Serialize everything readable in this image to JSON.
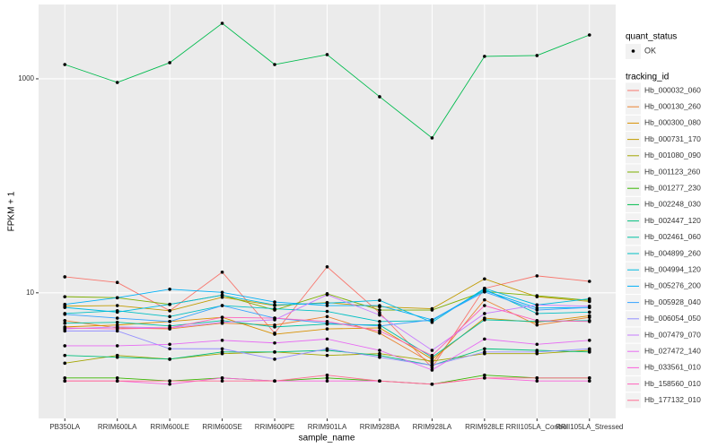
{
  "chart_data": {
    "type": "line",
    "x_label": "sample_name",
    "y_label": "FPKM + 1",
    "log_y": true,
    "grid": true,
    "categories": [
      "PB350LA",
      "RRIM600LA",
      "RRIM600LE",
      "RRIM600SE",
      "RRIM600PE",
      "RRIM901LA",
      "RRIM928BA",
      "RRIM928LA",
      "RRIM928LE",
      "RRII105LA_Control",
      "RRII105LA_Stressed"
    ],
    "ylim": [
      0.67,
      4950
    ],
    "yticks": [
      10,
      1000
    ],
    "point_legend_title": "quant_status",
    "point_legend_entries": [
      "OK"
    ],
    "point_color": "#000000",
    "legend_title": "tracking_id",
    "series": [
      {
        "name": "Hb_000032_060",
        "color": "#F8766D",
        "values": [
          14.1,
          12.5,
          6.8,
          15.6,
          4.2,
          17.5,
          6.5,
          2.0,
          11,
          14.4,
          12.8
        ]
      },
      {
        "name": "Hb_000130_260",
        "color": "#EA8331",
        "values": [
          5.5,
          4.7,
          4.6,
          5.2,
          5.0,
          6.0,
          4.2,
          2.2,
          8.6,
          5.0,
          5.9
        ]
      },
      {
        "name": "Hb_000300_080",
        "color": "#D89000",
        "values": [
          4.8,
          5.0,
          5.4,
          5.9,
          4.1,
          4.6,
          4.7,
          2.4,
          5.8,
          5.3,
          6.1
        ]
      },
      {
        "name": "Hb_000731_170",
        "color": "#C09B00",
        "values": [
          7.5,
          7.6,
          6.8,
          9.1,
          7.6,
          8.1,
          7.4,
          7.1,
          13.5,
          9.2,
          8.3
        ]
      },
      {
        "name": "Hb_001080_090",
        "color": "#A3A500",
        "values": [
          2.2,
          2.6,
          2.4,
          2.7,
          2.8,
          2.6,
          2.7,
          2.3,
          2.7,
          2.7,
          2.9
        ]
      },
      {
        "name": "Hb_001123_260",
        "color": "#7CAE00",
        "values": [
          9.2,
          9.0,
          7.8,
          9.5,
          6.9,
          9.8,
          6.9,
          6.9,
          10.3,
          9.4,
          8.5
        ]
      },
      {
        "name": "Hb_001277_230",
        "color": "#39B600",
        "values": [
          1.6,
          1.6,
          1.5,
          1.6,
          1.5,
          1.6,
          1.5,
          1.4,
          1.7,
          1.6,
          1.6
        ]
      },
      {
        "name": "Hb_002248_030",
        "color": "#00BB4E",
        "values": [
          1360,
          925,
          1415,
          3300,
          1360,
          1683,
          680,
          280,
          1620,
          1650,
          2570
        ]
      },
      {
        "name": "Hb_002447_120",
        "color": "#00BF7D",
        "values": [
          2.6,
          2.5,
          2.4,
          2.8,
          2.8,
          2.9,
          2.6,
          2.1,
          3.0,
          2.9,
          2.8
        ]
      },
      {
        "name": "Hb_002461_060",
        "color": "#00C1A3",
        "values": [
          5.2,
          5.3,
          4.9,
          5.5,
          4.8,
          5.1,
          5.0,
          2.5,
          5.6,
          5.4,
          5.5
        ]
      },
      {
        "name": "Hb_004899_260",
        "color": "#00BFC4",
        "values": [
          6.4,
          6.8,
          6.0,
          7.6,
          7.1,
          6.7,
          5.4,
          5.5,
          10.8,
          6.4,
          6.6
        ]
      },
      {
        "name": "Hb_004994_120",
        "color": "#00BAE0",
        "values": [
          7.3,
          6.6,
          7.8,
          9.5,
          7.7,
          8.0,
          8.5,
          5.3,
          11.0,
          7.7,
          8.8
        ]
      },
      {
        "name": "Hb_005276_200",
        "color": "#00B0F6",
        "values": [
          7.8,
          9.0,
          10.8,
          10.1,
          8.2,
          7.6,
          7.6,
          5.6,
          10.5,
          7.2,
          7.3
        ]
      },
      {
        "name": "Hb_005928_040",
        "color": "#35A2FF",
        "values": [
          6.3,
          5.8,
          5.4,
          7.6,
          5.8,
          5.2,
          4.9,
          5.6,
          10.2,
          6.9,
          7.3
        ]
      },
      {
        "name": "Hb_006054_050",
        "color": "#9590FF",
        "values": [
          4.4,
          4.4,
          3.0,
          3.0,
          2.4,
          3.0,
          2.5,
          2.1,
          2.8,
          2.8,
          3.0
        ]
      },
      {
        "name": "Hb_007479_070",
        "color": "#C77CFF",
        "values": [
          4.6,
          4.8,
          4.7,
          5.3,
          5.6,
          9.6,
          6.2,
          2.9,
          6.4,
          7.7,
          7.5
        ]
      },
      {
        "name": "Hb_027472_140",
        "color": "#E76BF3",
        "values": [
          3.2,
          3.2,
          3.3,
          3.6,
          3.4,
          3.7,
          2.9,
          1.9,
          3.7,
          3.3,
          3.6
        ]
      },
      {
        "name": "Hb_033561_010",
        "color": "#FA62DB",
        "values": [
          1.5,
          1.5,
          1.4,
          1.6,
          1.5,
          1.5,
          1.5,
          1.4,
          1.6,
          1.5,
          1.5
        ]
      },
      {
        "name": "Hb_158560_010",
        "color": "#FF62BC",
        "values": [
          4.7,
          4.6,
          4.7,
          5.9,
          5.8,
          5.4,
          4.4,
          2.6,
          7.6,
          5.5,
          5.4
        ]
      },
      {
        "name": "Hb_177132_010",
        "color": "#FF6C91",
        "values": [
          1.5,
          1.5,
          1.5,
          1.5,
          1.5,
          1.7,
          1.5,
          1.4,
          1.6,
          1.6,
          1.6
        ]
      }
    ]
  }
}
